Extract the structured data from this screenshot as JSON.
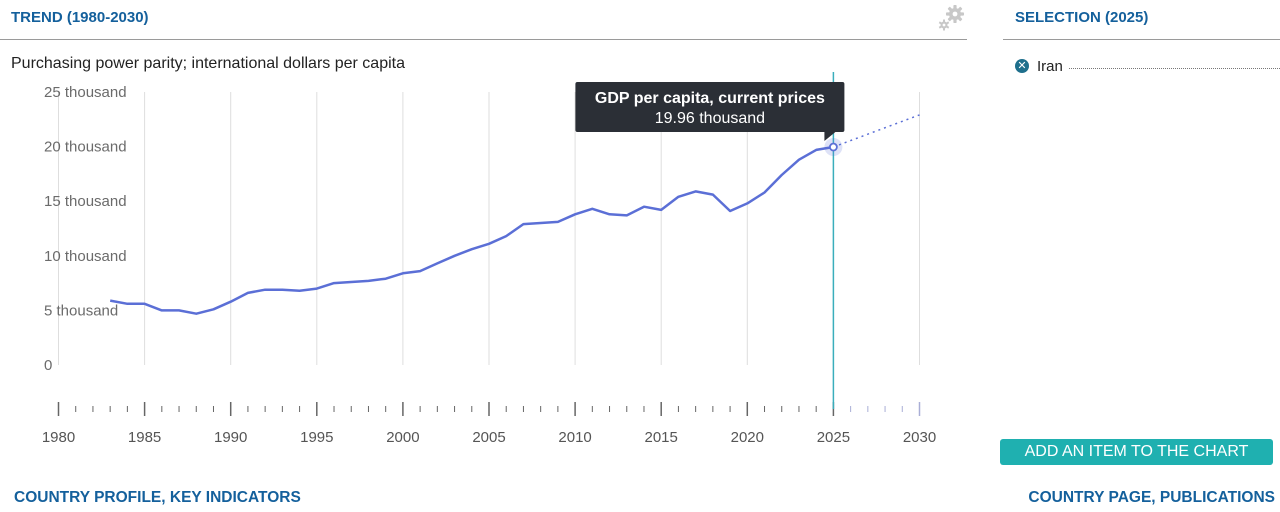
{
  "header": {
    "trend_title": "TREND (1980-2030)",
    "selection_title": "SELECTION (2025)"
  },
  "subtitle": "Purchasing power parity; international dollars per capita",
  "legend": [
    {
      "label": "Iran",
      "remove_icon": "close-circle-icon",
      "color": "#1e6f8c"
    }
  ],
  "add_button_label": "ADD AN ITEM TO THE CHART",
  "links": {
    "left": "COUNTRY PROFILE, KEY INDICATORS",
    "right": "COUNTRY PAGE, PUBLICATIONS"
  },
  "settings_icon": "gear-icon",
  "colors": {
    "line": "#5b6fd6",
    "accent": "#14609c",
    "cursor": "#3aaebc",
    "button": "#1fb0b0",
    "tooltip_bg": "#2b2f36"
  },
  "tooltip": {
    "title": "GDP per capita, current prices",
    "value": "19.96 thousand"
  },
  "chart_data": {
    "type": "line",
    "title": "",
    "xlabel": "",
    "ylabel": "Purchasing power parity; international dollars per capita",
    "xlim": [
      1980,
      2030
    ],
    "ylim": [
      0,
      25000
    ],
    "y_ticks": [
      0,
      5000,
      10000,
      15000,
      20000,
      25000
    ],
    "y_tick_labels": [
      "0",
      "5 thousand",
      "10 thousand",
      "15 thousand",
      "20 thousand",
      "25 thousand"
    ],
    "x_tick_labels": [
      "1980",
      "1985",
      "1990",
      "1995",
      "2000",
      "2005",
      "2010",
      "2015",
      "2020",
      "2025",
      "2030"
    ],
    "grid": "vertical",
    "selected_x": 2025,
    "series": [
      {
        "name": "Iran",
        "x": [
          1983,
          1984,
          1985,
          1986,
          1987,
          1988,
          1989,
          1990,
          1991,
          1992,
          1993,
          1994,
          1995,
          1996,
          1997,
          1998,
          1999,
          2000,
          2001,
          2002,
          2003,
          2004,
          2005,
          2006,
          2007,
          2008,
          2009,
          2010,
          2011,
          2012,
          2013,
          2014,
          2015,
          2016,
          2017,
          2018,
          2019,
          2020,
          2021,
          2022,
          2023,
          2024,
          2025
        ],
        "values": [
          5900,
          5600,
          5600,
          5000,
          5000,
          4700,
          5100,
          5800,
          6600,
          6900,
          6900,
          6800,
          7000,
          7500,
          7600,
          7700,
          7900,
          8400,
          8600,
          9300,
          10000,
          10600,
          11100,
          11800,
          12900,
          13000,
          13100,
          13800,
          14300,
          13800,
          13700,
          14500,
          14200,
          15400,
          15900,
          15600,
          14100,
          14800,
          15800,
          17400,
          18800,
          19700,
          19960
        ]
      },
      {
        "name": "Iran (projection)",
        "x": [
          2025,
          2030
        ],
        "values": [
          19960,
          22900
        ]
      }
    ]
  }
}
